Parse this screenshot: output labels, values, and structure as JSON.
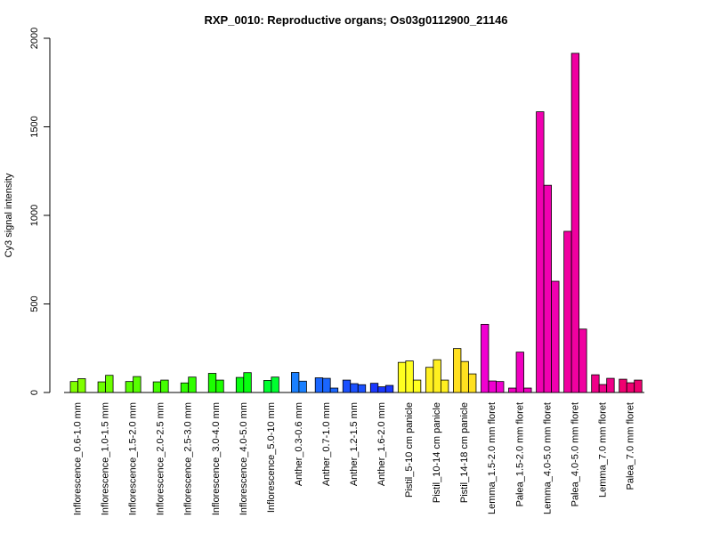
{
  "chart_data": {
    "type": "bar",
    "title": "RXP_0010: Reproductive organs; Os03g0112900_21146",
    "ylabel": "Cy3 signal intensity",
    "xlabel": "",
    "ylim": [
      0,
      2000
    ],
    "yticks": [
      0,
      500,
      1000,
      1500,
      2000
    ],
    "grid": false,
    "legend": "none",
    "groups": [
      {
        "label": "Inflorescence_0.6-1.0 mm",
        "color": "#80ff00",
        "values": [
          62,
          78
        ]
      },
      {
        "label": "Inflorescence_1.0-1.5 mm",
        "color": "#6cff00",
        "values": [
          60,
          97
        ]
      },
      {
        "label": "Inflorescence_1.5-2.0 mm",
        "color": "#58ff00",
        "values": [
          62,
          90
        ]
      },
      {
        "label": "Inflorescence_2.0-2.5 mm",
        "color": "#44ff00",
        "values": [
          60,
          70
        ]
      },
      {
        "label": "Inflorescence_2.5-3.0 mm",
        "color": "#30ff00",
        "values": [
          54,
          87
        ]
      },
      {
        "label": "Inflorescence_3.0-4.0 mm",
        "color": "#1cff00",
        "values": [
          108,
          70
        ]
      },
      {
        "label": "Inflorescence_4.0-5.0 mm",
        "color": "#08ff10",
        "values": [
          85,
          112
        ]
      },
      {
        "label": "Inflorescence_5.0-10 mm",
        "color": "#00ff30",
        "values": [
          68,
          87
        ]
      },
      {
        "label": "Anther_0.3-0.6 mm",
        "color": "#1a80ff",
        "values": [
          113,
          64
        ]
      },
      {
        "label": "Anther_0.7-1.0 mm",
        "color": "#1a66ff",
        "values": [
          83,
          80,
          25
        ]
      },
      {
        "label": "Anther_1.2-1.5 mm",
        "color": "#1a50ff",
        "values": [
          70,
          50,
          44
        ]
      },
      {
        "label": "Anther_1.6-2.0 mm",
        "color": "#1a38ff",
        "values": [
          52,
          32,
          40
        ]
      },
      {
        "label": "Pistil_5-10 cm panicle",
        "color": "#ffff20",
        "values": [
          170,
          178,
          70
        ]
      },
      {
        "label": "Pistil_10-14 cm panicle",
        "color": "#fff020",
        "values": [
          142,
          185,
          70
        ]
      },
      {
        "label": "Pistil_14-18 cm panicle",
        "color": "#ffe020",
        "values": [
          248,
          175,
          105
        ]
      },
      {
        "label": "Lemma_1.5-2.0 mm floret",
        "color": "#f000d0",
        "values": [
          385,
          65,
          62
        ]
      },
      {
        "label": "Palea_1.5-2.0 mm floret",
        "color": "#f000c0",
        "values": [
          25,
          228,
          25
        ]
      },
      {
        "label": "Lemma_4.0-5.0 mm floret",
        "color": "#f000b0",
        "values": [
          1585,
          1170,
          628
        ]
      },
      {
        "label": "Palea_4.0-5.0 mm floret",
        "color": "#f000a0",
        "values": [
          910,
          1915,
          358
        ]
      },
      {
        "label": "Lemma_7.0 mm floret",
        "color": "#f00088",
        "values": [
          100,
          45,
          80
        ]
      },
      {
        "label": "Palea_7.0 mm floret",
        "color": "#f00070",
        "values": [
          75,
          55,
          70
        ]
      }
    ]
  }
}
